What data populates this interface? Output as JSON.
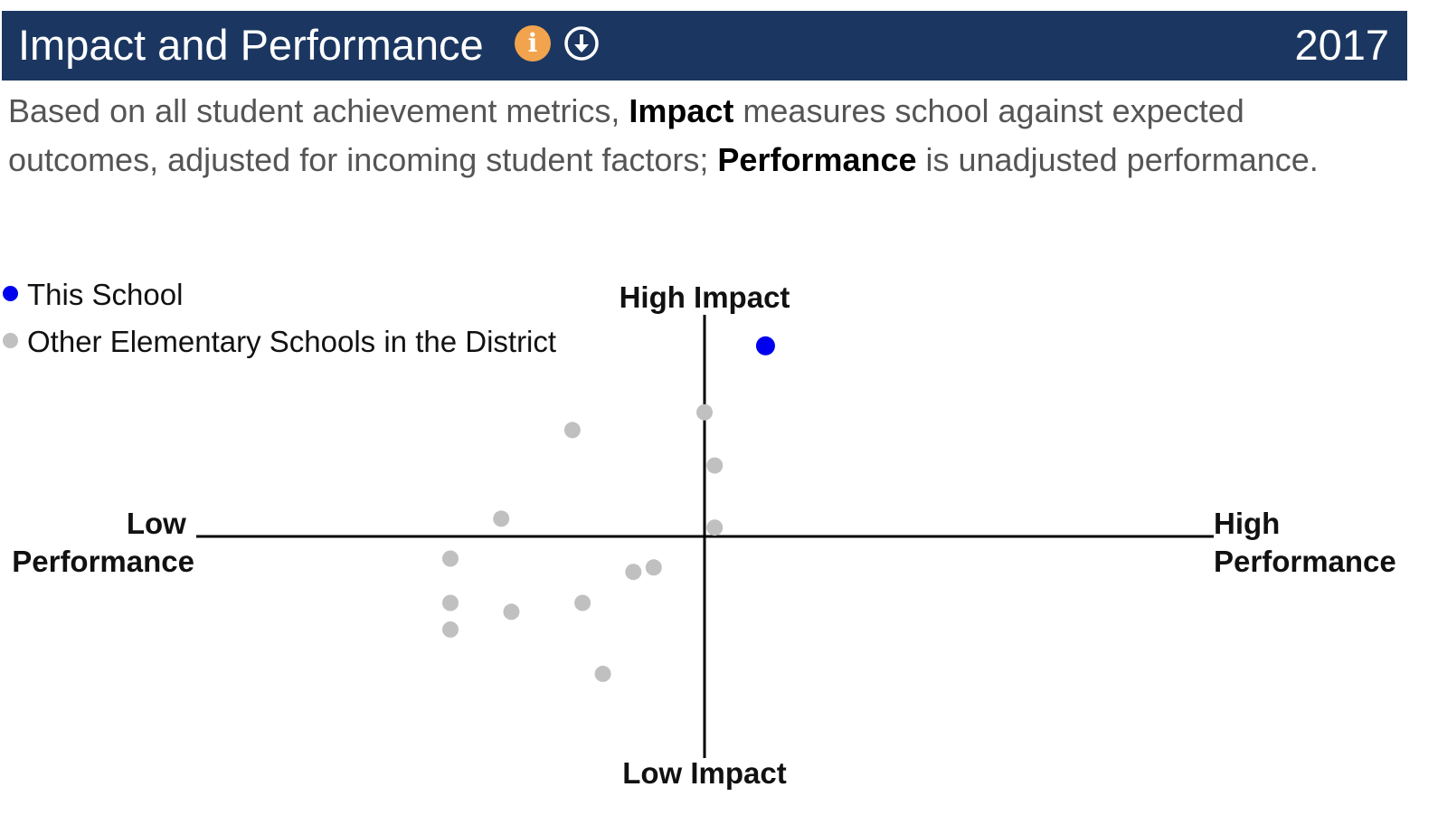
{
  "header": {
    "title": "Impact and Performance",
    "year": "2017",
    "info_icon": "info-icon",
    "download_icon": "download-circle-icon"
  },
  "description": {
    "part1": "Based on all student achievement metrics, ",
    "bold1": "Impact",
    "part2": " measures school against expected outcomes, adjusted for incoming student factors; ",
    "bold2": "Performance",
    "part3": " is unadjusted performance."
  },
  "legend": [
    {
      "label": "This School",
      "color": "#0000ee"
    },
    {
      "label": "Other Elementary Schools in the District",
      "color": "#c0c0c0"
    }
  ],
  "chart_data": {
    "type": "scatter",
    "xlabel_low": "Low Performance",
    "xlabel_high": "High Performance",
    "ylabel_high": "High Impact",
    "ylabel_low": "Low Impact",
    "xlim": [
      -1,
      1
    ],
    "ylim": [
      -1,
      1
    ],
    "grid": false,
    "series": [
      {
        "name": "This School",
        "color": "#0000ee",
        "points": [
          {
            "x": 0.12,
            "y": 0.86
          }
        ]
      },
      {
        "name": "Other Elementary Schools in the District",
        "color": "#c0c0c0",
        "points": [
          {
            "x": 0.0,
            "y": 0.56
          },
          {
            "x": -0.26,
            "y": 0.48
          },
          {
            "x": 0.02,
            "y": 0.32
          },
          {
            "x": -0.4,
            "y": 0.08
          },
          {
            "x": 0.02,
            "y": 0.04
          },
          {
            "x": -0.5,
            "y": -0.1
          },
          {
            "x": -0.14,
            "y": -0.16
          },
          {
            "x": -0.1,
            "y": -0.14
          },
          {
            "x": -0.5,
            "y": -0.3
          },
          {
            "x": -0.38,
            "y": -0.34
          },
          {
            "x": -0.24,
            "y": -0.3
          },
          {
            "x": -0.5,
            "y": -0.42
          },
          {
            "x": -0.2,
            "y": -0.62
          }
        ]
      }
    ]
  }
}
